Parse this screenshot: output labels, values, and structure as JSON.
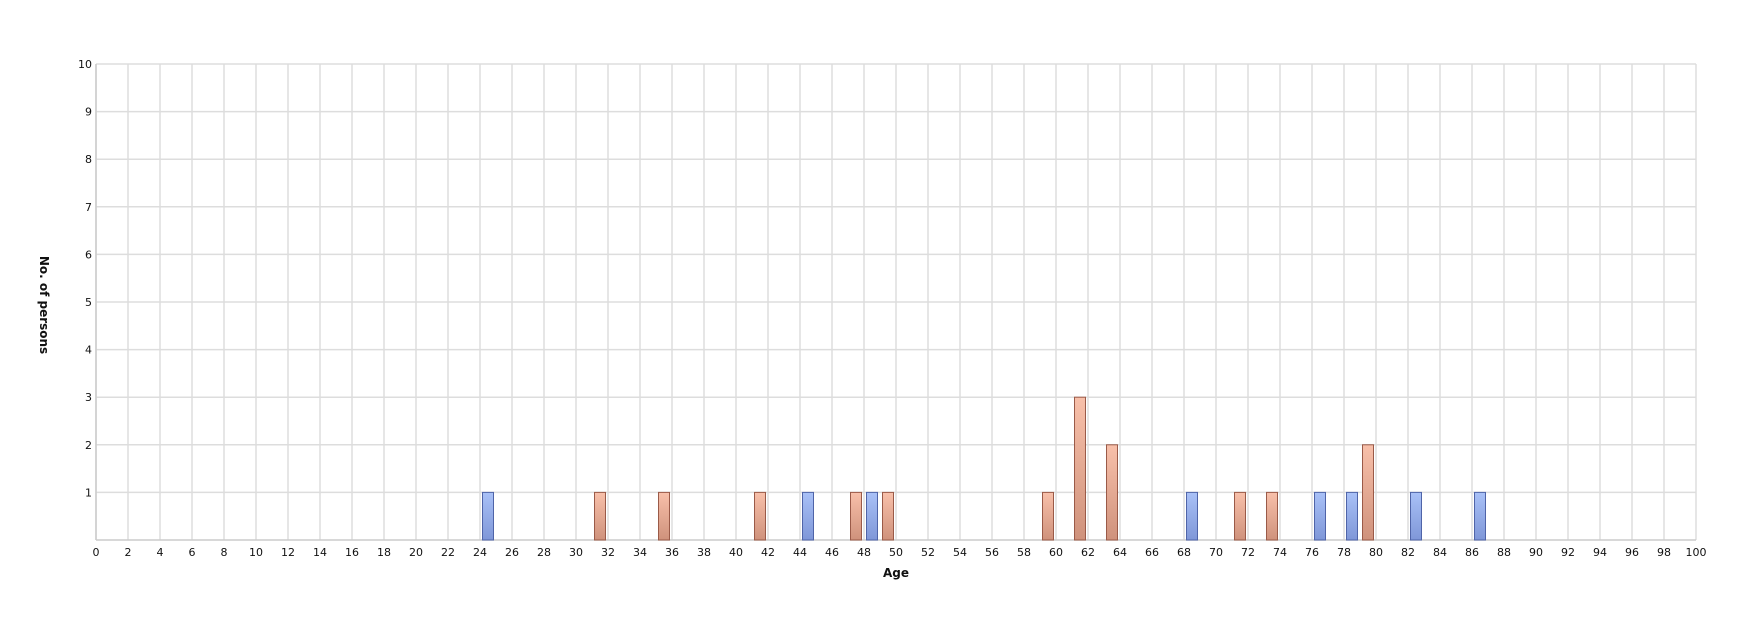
{
  "chart_data": {
    "type": "bar",
    "title": "",
    "xlabel": "Age",
    "ylabel": "No. of persons",
    "xlim": [
      0,
      100
    ],
    "ylim": [
      0,
      10
    ],
    "x_ticks": [
      0,
      2,
      4,
      6,
      8,
      10,
      12,
      14,
      16,
      18,
      20,
      22,
      24,
      26,
      28,
      30,
      32,
      34,
      36,
      38,
      40,
      42,
      44,
      46,
      48,
      50,
      52,
      54,
      56,
      58,
      60,
      62,
      64,
      66,
      68,
      70,
      72,
      74,
      76,
      78,
      80,
      82,
      84,
      86,
      88,
      90,
      92,
      94,
      96,
      98,
      100
    ],
    "y_ticks": [
      1,
      2,
      3,
      4,
      5,
      6,
      7,
      8,
      9,
      10
    ],
    "grid": true,
    "legend": "none",
    "series": [
      {
        "color": "#9db4ee",
        "x": [
          24.5,
          44.5,
          48.5,
          68.5,
          76.5,
          78.5,
          82.5,
          86.5
        ],
        "values": [
          1,
          1,
          1,
          1,
          1,
          1,
          1,
          1
        ]
      },
      {
        "color": "#f5b9a4",
        "x": [
          31.5,
          35.5,
          41.5,
          47.5,
          49.5,
          59.5,
          61.5,
          63.5,
          71.5,
          73.5,
          79.5
        ],
        "values": [
          1,
          1,
          1,
          1,
          1,
          1,
          3,
          2,
          1,
          1,
          2
        ]
      }
    ]
  }
}
